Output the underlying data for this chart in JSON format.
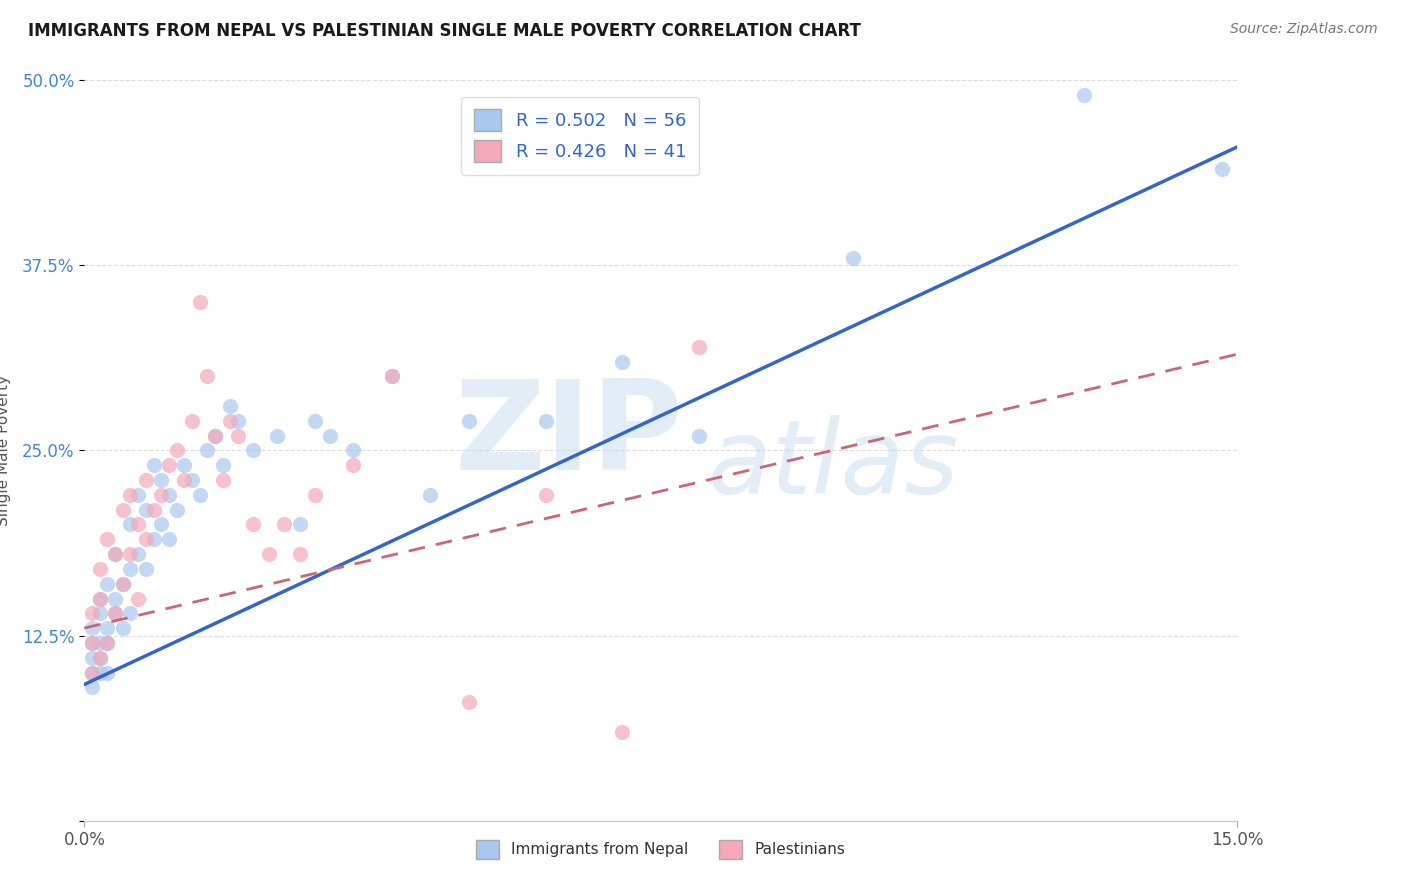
{
  "title": "IMMIGRANTS FROM NEPAL VS PALESTINIAN SINGLE MALE POVERTY CORRELATION CHART",
  "source": "Source: ZipAtlas.com",
  "ylabel": "Single Male Poverty",
  "legend_label1": "Immigrants from Nepal",
  "legend_label2": "Palestinians",
  "legend_r1": "R = 0.502",
  "legend_n1": "N = 56",
  "legend_r2": "R = 0.426",
  "legend_n2": "N = 41",
  "xlim": [
    0.0,
    0.15
  ],
  "ylim": [
    0.0,
    0.5
  ],
  "color_nepal": "#A8C8F0",
  "color_palestinians": "#F4A8B8",
  "color_line_nepal": "#3366CC",
  "color_line_palestinians": "#CC6677",
  "nepal_x": [
    0.001,
    0.001,
    0.001,
    0.001,
    0.001,
    0.002,
    0.002,
    0.002,
    0.002,
    0.002,
    0.003,
    0.003,
    0.003,
    0.003,
    0.004,
    0.004,
    0.004,
    0.005,
    0.005,
    0.006,
    0.006,
    0.006,
    0.007,
    0.007,
    0.008,
    0.008,
    0.009,
    0.009,
    0.01,
    0.01,
    0.011,
    0.011,
    0.012,
    0.013,
    0.014,
    0.015,
    0.016,
    0.017,
    0.018,
    0.019,
    0.02,
    0.022,
    0.025,
    0.028,
    0.03,
    0.032,
    0.035,
    0.04,
    0.045,
    0.05,
    0.06,
    0.07,
    0.08,
    0.1,
    0.13,
    0.148
  ],
  "nepal_y": [
    0.09,
    0.1,
    0.11,
    0.12,
    0.13,
    0.1,
    0.11,
    0.12,
    0.14,
    0.15,
    0.1,
    0.12,
    0.13,
    0.16,
    0.14,
    0.15,
    0.18,
    0.13,
    0.16,
    0.14,
    0.17,
    0.2,
    0.18,
    0.22,
    0.17,
    0.21,
    0.19,
    0.24,
    0.2,
    0.23,
    0.19,
    0.22,
    0.21,
    0.24,
    0.23,
    0.22,
    0.25,
    0.26,
    0.24,
    0.28,
    0.27,
    0.25,
    0.26,
    0.2,
    0.27,
    0.26,
    0.25,
    0.3,
    0.22,
    0.27,
    0.27,
    0.31,
    0.26,
    0.38,
    0.49,
    0.44
  ],
  "pal_x": [
    0.001,
    0.001,
    0.001,
    0.002,
    0.002,
    0.002,
    0.003,
    0.003,
    0.004,
    0.004,
    0.005,
    0.005,
    0.006,
    0.006,
    0.007,
    0.007,
    0.008,
    0.008,
    0.009,
    0.01,
    0.011,
    0.012,
    0.013,
    0.014,
    0.015,
    0.016,
    0.017,
    0.018,
    0.019,
    0.02,
    0.022,
    0.024,
    0.026,
    0.028,
    0.03,
    0.035,
    0.04,
    0.05,
    0.06,
    0.07,
    0.08
  ],
  "pal_y": [
    0.1,
    0.12,
    0.14,
    0.11,
    0.15,
    0.17,
    0.12,
    0.19,
    0.14,
    0.18,
    0.16,
    0.21,
    0.18,
    0.22,
    0.15,
    0.2,
    0.19,
    0.23,
    0.21,
    0.22,
    0.24,
    0.25,
    0.23,
    0.27,
    0.35,
    0.3,
    0.26,
    0.23,
    0.27,
    0.26,
    0.2,
    0.18,
    0.2,
    0.18,
    0.22,
    0.24,
    0.3,
    0.08,
    0.22,
    0.06,
    0.32
  ]
}
